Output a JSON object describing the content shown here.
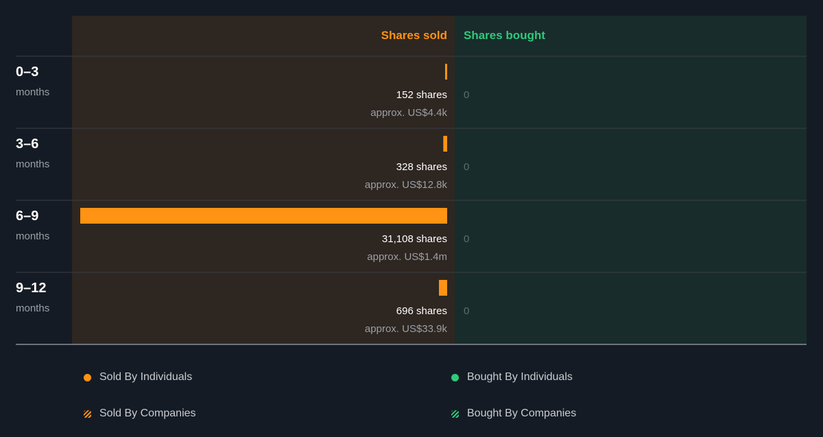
{
  "colors": {
    "sold": "#ff9314",
    "bought": "#2fc97a",
    "sold_panel": "#2e2621",
    "bought_panel": "#182c2b",
    "muted_text": "#9aa0a6",
    "zero_text": "#5c6f6c",
    "background": "#151b24"
  },
  "chart_data": {
    "type": "bar",
    "orientation": "horizontal-diverging",
    "headers": {
      "sold": "Shares sold",
      "bought": "Shares bought"
    },
    "categories": [
      {
        "range": "0–3",
        "unit": "months"
      },
      {
        "range": "3–6",
        "unit": "months"
      },
      {
        "range": "6–9",
        "unit": "months"
      },
      {
        "range": "9–12",
        "unit": "months"
      }
    ],
    "series": [
      {
        "name": "Shares sold",
        "values": [
          152,
          328,
          31108,
          696
        ],
        "labels": [
          "152 shares",
          "328 shares",
          "31,108 shares",
          "696 shares"
        ],
        "approx": [
          "approx. US$4.4k",
          "approx. US$12.8k",
          "approx. US$1.4m",
          "approx. US$33.9k"
        ]
      },
      {
        "name": "Shares bought",
        "values": [
          0,
          0,
          0,
          0
        ],
        "labels": [
          "0",
          "0",
          "0",
          "0"
        ]
      }
    ],
    "legend": [
      {
        "label": "Sold By Individuals",
        "icon": "orange-dot-icon",
        "color": "#ff9314",
        "style": "solid"
      },
      {
        "label": "Bought By Individuals",
        "icon": "green-dot-icon",
        "color": "#2fc97a",
        "style": "solid"
      },
      {
        "label": "Sold By Companies",
        "icon": "orange-striped-icon",
        "color": "#ff9314",
        "style": "striped"
      },
      {
        "label": "Bought By Companies",
        "icon": "green-striped-icon",
        "color": "#2fc97a",
        "style": "striped"
      }
    ],
    "legend_placement": "bottom"
  }
}
